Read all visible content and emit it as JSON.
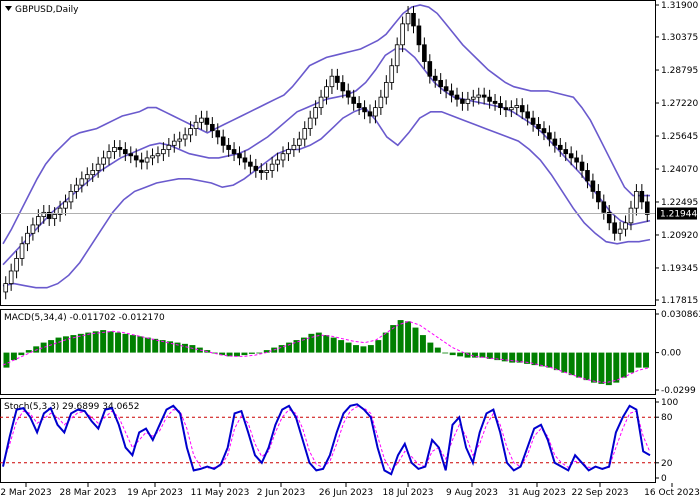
{
  "header": {
    "symbol_title": "GBPUSD,Daily"
  },
  "price_panel": {
    "current_price_label": "1.21944",
    "y_ticks": [
      "1.31900",
      "1.30375",
      "1.28795",
      "1.27220",
      "1.25645",
      "1.24070",
      "1.22495",
      "1.20920",
      "1.19345",
      "1.17815"
    ]
  },
  "macd_panel": {
    "title": "MACD(5,34,4) -0.011702 -0.012170",
    "y_ticks": [
      "0.030863",
      "0.00",
      "-0.0299"
    ]
  },
  "stoch_panel": {
    "title": "Stoch(5,3,3) 29.6899 34.0652",
    "y_ticks": [
      "100",
      "80",
      "20",
      "0"
    ]
  },
  "x_axis": {
    "labels": [
      "2 Mar 2023",
      "28 Mar 2023",
      "19 Apr 2023",
      "11 May 2023",
      "2 Jun 2023",
      "26 Jun 2023",
      "18 Jul 2023",
      "9 Aug 2023",
      "31 Aug 2023",
      "22 Sep 2023",
      "16 Oct 2023"
    ]
  },
  "colors": {
    "candle": "#000000",
    "bollinger": "#6a5acd",
    "macd_hist": "#008000",
    "macd_signal": "#ff00ff",
    "stoch_main": "#0000cd",
    "stoch_signal": "#ff00ff",
    "level_line": "#cc0000"
  },
  "chart_data": [
    {
      "type": "line",
      "panel": "price",
      "ylim": [
        1.17815,
        1.319
      ],
      "series": [
        {
          "name": "close",
          "values": [
            1.186,
            1.192,
            1.198,
            1.205,
            1.21,
            1.214,
            1.218,
            1.22,
            1.217,
            1.219,
            1.222,
            1.225,
            1.23,
            1.233,
            1.236,
            1.238,
            1.24,
            1.243,
            1.246,
            1.249,
            1.251,
            1.25,
            1.248,
            1.247,
            1.245,
            1.244,
            1.246,
            1.247,
            1.248,
            1.25,
            1.252,
            1.254,
            1.255,
            1.257,
            1.26,
            1.263,
            1.265,
            1.262,
            1.259,
            1.256,
            1.252,
            1.25,
            1.248,
            1.246,
            1.244,
            1.242,
            1.24,
            1.239,
            1.24,
            1.243,
            1.245,
            1.248,
            1.25,
            1.252,
            1.255,
            1.26,
            1.265,
            1.27,
            1.275,
            1.28,
            1.285,
            1.282,
            1.278,
            1.275,
            1.272,
            1.27,
            1.268,
            1.266,
            1.27,
            1.275,
            1.282,
            1.29,
            1.3,
            1.31,
            1.315,
            1.309,
            1.3,
            1.292,
            1.285,
            1.283,
            1.28,
            1.278,
            1.276,
            1.274,
            1.272,
            1.274,
            1.275,
            1.276,
            1.275,
            1.273,
            1.272,
            1.27,
            1.269,
            1.27,
            1.271,
            1.268,
            1.265,
            1.262,
            1.26,
            1.258,
            1.255,
            1.252,
            1.25,
            1.248,
            1.246,
            1.244,
            1.24,
            1.235,
            1.23,
            1.225,
            1.22,
            1.215,
            1.21,
            1.212,
            1.215,
            1.222,
            1.23,
            1.225,
            1.219
          ]
        },
        {
          "name": "bollinger_upper",
          "values": [
            1.205,
            1.212,
            1.22,
            1.228,
            1.236,
            1.243,
            1.248,
            1.252,
            1.256,
            1.258,
            1.259,
            1.26,
            1.262,
            1.264,
            1.266,
            1.267,
            1.268,
            1.27,
            1.27,
            1.268,
            1.266,
            1.264,
            1.262,
            1.26,
            1.258,
            1.26,
            1.262,
            1.264,
            1.266,
            1.268,
            1.27,
            1.272,
            1.274,
            1.276,
            1.28,
            1.285,
            1.29,
            1.292,
            1.294,
            1.295,
            1.296,
            1.297,
            1.298,
            1.3,
            1.302,
            1.305,
            1.31,
            1.315,
            1.318,
            1.319,
            1.318,
            1.315,
            1.31,
            1.305,
            1.3,
            1.296,
            1.292,
            1.288,
            1.285,
            1.282,
            1.28,
            1.279,
            1.278,
            1.278,
            1.278,
            1.277,
            1.276,
            1.275,
            1.27,
            1.264,
            1.256,
            1.248,
            1.24,
            1.232,
            1.228,
            1.228,
            1.228
          ]
        },
        {
          "name": "bollinger_middle",
          "values": [
            1.195,
            1.2,
            1.205,
            1.21,
            1.215,
            1.22,
            1.224,
            1.228,
            1.232,
            1.236,
            1.24,
            1.243,
            1.246,
            1.248,
            1.25,
            1.252,
            1.253,
            1.252,
            1.25,
            1.248,
            1.247,
            1.246,
            1.246,
            1.247,
            1.248,
            1.25,
            1.253,
            1.256,
            1.26,
            1.264,
            1.268,
            1.27,
            1.272,
            1.274,
            1.275,
            1.276,
            1.278,
            1.282,
            1.288,
            1.295,
            1.298,
            1.298,
            1.294,
            1.288,
            1.282,
            1.278,
            1.275,
            1.274,
            1.273,
            1.272,
            1.271,
            1.27,
            1.268,
            1.265,
            1.262,
            1.258,
            1.253,
            1.248,
            1.243,
            1.238,
            1.232,
            1.226,
            1.22,
            1.216,
            1.214,
            1.215,
            1.216
          ]
        },
        {
          "name": "bollinger_lower",
          "values": [
            1.185,
            1.186,
            1.185,
            1.184,
            1.184,
            1.186,
            1.19,
            1.196,
            1.204,
            1.212,
            1.22,
            1.226,
            1.23,
            1.232,
            1.234,
            1.235,
            1.236,
            1.236,
            1.235,
            1.234,
            1.232,
            1.233,
            1.236,
            1.24,
            1.244,
            1.248,
            1.25,
            1.25,
            1.252,
            1.255,
            1.26,
            1.265,
            1.268,
            1.27,
            1.264,
            1.256,
            1.252,
            1.258,
            1.265,
            1.268,
            1.268,
            1.266,
            1.264,
            1.262,
            1.26,
            1.258,
            1.256,
            1.254,
            1.25,
            1.245,
            1.238,
            1.23,
            1.222,
            1.215,
            1.21,
            1.206,
            1.205,
            1.206,
            1.206,
            1.207
          ]
        }
      ]
    },
    {
      "type": "bar",
      "panel": "macd",
      "ylim": [
        -0.0299,
        0.030863
      ],
      "series": [
        {
          "name": "histogram",
          "values": [
            -0.012,
            -0.006,
            -0.002,
            0.002,
            0.005,
            0.008,
            0.01,
            0.012,
            0.013,
            0.014,
            0.015,
            0.016,
            0.017,
            0.018,
            0.017,
            0.016,
            0.015,
            0.014,
            0.013,
            0.012,
            0.011,
            0.01,
            0.009,
            0.008,
            0.007,
            0.006,
            0.004,
            0.002,
            0.0,
            -0.002,
            -0.003,
            -0.003,
            -0.002,
            -0.001,
            0.0,
            0.002,
            0.004,
            0.006,
            0.008,
            0.01,
            0.012,
            0.015,
            0.016,
            0.014,
            0.012,
            0.01,
            0.008,
            0.006,
            0.005,
            0.006,
            0.01,
            0.016,
            0.022,
            0.026,
            0.025,
            0.02,
            0.014,
            0.008,
            0.004,
            0.0,
            -0.002,
            -0.003,
            -0.004,
            -0.004,
            -0.004,
            -0.005,
            -0.006,
            -0.007,
            -0.008,
            -0.008,
            -0.009,
            -0.01,
            -0.011,
            -0.012,
            -0.014,
            -0.016,
            -0.018,
            -0.02,
            -0.022,
            -0.024,
            -0.025,
            -0.026,
            -0.024,
            -0.02,
            -0.016,
            -0.012,
            -0.012
          ]
        },
        {
          "name": "signal",
          "values": [
            -0.01,
            -0.006,
            -0.002,
            0.002,
            0.005,
            0.008,
            0.011,
            0.013,
            0.015,
            0.016,
            0.017,
            0.016,
            0.014,
            0.012,
            0.01,
            0.008,
            0.006,
            0.004,
            0.002,
            0.0,
            -0.002,
            -0.003,
            -0.003,
            -0.002,
            0.0,
            0.003,
            0.006,
            0.009,
            0.012,
            0.014,
            0.013,
            0.011,
            0.009,
            0.008,
            0.01,
            0.016,
            0.022,
            0.025,
            0.022,
            0.016,
            0.01,
            0.004,
            0.0,
            -0.003,
            -0.004,
            -0.005,
            -0.006,
            -0.007,
            -0.008,
            -0.01,
            -0.012,
            -0.015,
            -0.018,
            -0.021,
            -0.023,
            -0.024,
            -0.022,
            -0.018,
            -0.014,
            -0.012
          ]
        }
      ]
    },
    {
      "type": "line",
      "panel": "stoch",
      "ylim": [
        0,
        100
      ],
      "series": [
        {
          "name": "main",
          "values": [
            15,
            55,
            90,
            92,
            80,
            60,
            85,
            92,
            70,
            60,
            85,
            90,
            88,
            75,
            65,
            90,
            92,
            70,
            40,
            30,
            60,
            65,
            50,
            70,
            90,
            95,
            85,
            40,
            10,
            12,
            15,
            12,
            18,
            40,
            85,
            88,
            60,
            30,
            20,
            40,
            70,
            90,
            95,
            80,
            50,
            20,
            10,
            12,
            30,
            60,
            85,
            95,
            97,
            90,
            80,
            40,
            10,
            5,
            30,
            45,
            20,
            12,
            15,
            50,
            40,
            10,
            70,
            80,
            40,
            20,
            60,
            85,
            90,
            60,
            20,
            10,
            15,
            40,
            65,
            70,
            50,
            20,
            15,
            10,
            30,
            20,
            10,
            15,
            12,
            15,
            60,
            80,
            95,
            90,
            35,
            30
          ]
        },
        {
          "name": "signal",
          "values": [
            20,
            45,
            75,
            88,
            85,
            72,
            78,
            85,
            80,
            70,
            78,
            86,
            87,
            80,
            72,
            80,
            88,
            80,
            60,
            40,
            50,
            60,
            55,
            62,
            80,
            90,
            88,
            65,
            30,
            15,
            13,
            14,
            16,
            30,
            65,
            82,
            72,
            45,
            28,
            35,
            60,
            80,
            90,
            85,
            65,
            35,
            18,
            14,
            22,
            45,
            72,
            88,
            94,
            92,
            85,
            55,
            25,
            10,
            20,
            35,
            28,
            18,
            15,
            35,
            40,
            25,
            50,
            70,
            55,
            30,
            45,
            70,
            85,
            70,
            40,
            20,
            15,
            30,
            55,
            65,
            55,
            30,
            20,
            14,
            22,
            20,
            14,
            14,
            13,
            14,
            40,
            65,
            85,
            88,
            55,
            34
          ]
        }
      ],
      "levels": [
        80,
        20
      ]
    }
  ]
}
